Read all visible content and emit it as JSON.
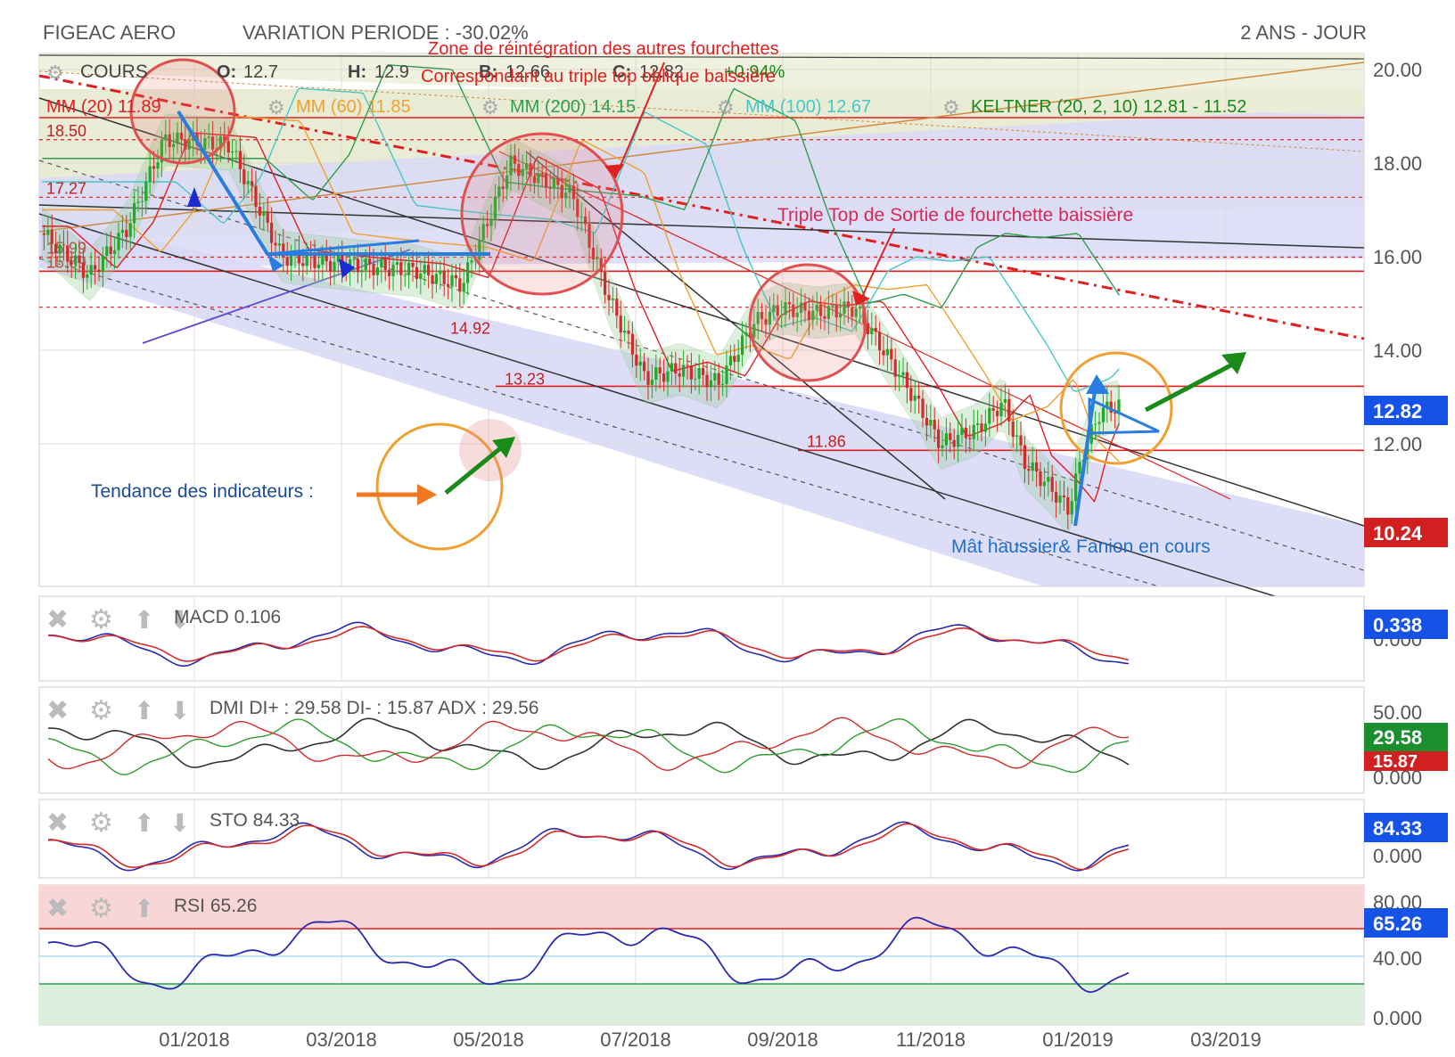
{
  "header": {
    "instrument": "FIGEAC AERO",
    "variation": "VARIATION PERIODE : -30.02%",
    "period": "2 ANS - JOUR"
  },
  "legend": {
    "cours": "COURS",
    "ohlc": [
      {
        "key": "O:",
        "value": "12.7"
      },
      {
        "key": "H:",
        "value": "12.9"
      },
      {
        "key": "B:",
        "value": "12.66"
      },
      {
        "key": "C:",
        "value": "12.82"
      }
    ],
    "change": "+0.94%",
    "indicators": [
      {
        "label": "MM (20)",
        "value": "11.89",
        "color": "#e02020"
      },
      {
        "label": "MM (60)",
        "value": "11.85",
        "color": "#f0a030"
      },
      {
        "label": "MM (200)",
        "value": "14.15",
        "color": "#2e9e4e"
      },
      {
        "label": "MM (100)",
        "value": "12.67",
        "color": "#45c7c9"
      },
      {
        "label": "KELTNER (20, 2, 10)",
        "value": "12.81 - 11.52",
        "color": "#1a8a1a"
      }
    ]
  },
  "annotations": {
    "zone_reintegration_1": "Zone de réintégration des autres fourchettes",
    "zone_reintegration_2": "Correspondant au triple top oblique baissière",
    "triple_top": "Triple Top de Sortie de fourchette baissière",
    "mat_haussier": "Mât haussier& Fanion en cours",
    "tendance": "Tendance des indicateurs :"
  },
  "price_levels": [
    {
      "label": "18.50",
      "value": 18.5
    },
    {
      "label": "17.27",
      "value": 17.27
    },
    {
      "label": "15.99",
      "value": 15.99
    },
    {
      "label": "15.69",
      "value": 15.69
    },
    {
      "label": "14.92",
      "value": 14.92
    },
    {
      "label": "13.23",
      "value": 13.23
    },
    {
      "label": "11.86",
      "value": 11.86
    }
  ],
  "price_badges": {
    "last": "12.82",
    "last_value": 12.82,
    "low": "10.24",
    "low_value": 10.24
  },
  "panels": {
    "macd": {
      "label": "MACD",
      "value": "0.106",
      "badge": "0.338",
      "ticks": [
        "0.000"
      ]
    },
    "dmi": {
      "label": "DMI",
      "values": "DI+ : 29.58 DI- : 15.87 ADX : 29.56",
      "badge_plus": "29.58",
      "badge_minus": "15.87",
      "ticks": [
        "50.00",
        "0.000"
      ]
    },
    "sto": {
      "label": "STO",
      "value": "84.33",
      "badge": "84.33",
      "ticks": [
        "0.000"
      ]
    },
    "rsi": {
      "label": "RSI",
      "value": "65.26",
      "badge": "65.26",
      "ticks": [
        "80.00",
        "40.00",
        "0.000"
      ]
    }
  },
  "colors": {
    "up": "#1faa2a",
    "down": "#d42a2a",
    "blue_badge": "#1553e8",
    "red_badge": "#d21f1f",
    "green_badge": "#1b8f2e",
    "channel_fill": "#d9d9f7",
    "upper_fill": "#e6e9cf"
  },
  "chart_data": {
    "type": "candlestick",
    "title": "FIGEAC AERO",
    "x_ticks": [
      "01/2018",
      "03/2018",
      "05/2018",
      "07/2018",
      "09/2018",
      "11/2018",
      "01/2019",
      "03/2019"
    ],
    "y_ticks": [
      "20.00",
      "18.00",
      "16.00",
      "14.00",
      "12.00"
    ],
    "ylim": [
      9.0,
      20.2
    ],
    "price_anchor_dates": [
      "2017-11-01",
      "2017-11-20",
      "2017-12-05",
      "2017-12-20",
      "2018-01-15",
      "2018-02-05",
      "2018-02-20",
      "2018-03-10",
      "2018-04-01",
      "2018-04-20",
      "2018-05-01",
      "2018-05-10",
      "2018-05-25",
      "2018-06-05",
      "2018-06-20",
      "2018-07-05",
      "2018-07-20",
      "2018-08-05",
      "2018-08-20",
      "2018-09-01",
      "2018-09-15",
      "2018-10-01",
      "2018-10-10",
      "2018-10-25",
      "2018-11-05",
      "2018-11-20",
      "2018-12-01",
      "2018-12-10",
      "2018-12-20",
      "2018-12-28",
      "2019-01-03",
      "2019-01-10",
      "2019-01-18"
    ],
    "price_anchor_close": [
      16.5,
      15.6,
      16.6,
      18.5,
      18.4,
      16.0,
      15.9,
      15.8,
      15.7,
      15.4,
      16.8,
      18.0,
      17.6,
      17.3,
      15.1,
      13.4,
      13.6,
      13.3,
      14.6,
      14.9,
      14.8,
      14.9,
      14.2,
      13.0,
      12.0,
      12.3,
      12.9,
      11.6,
      11.1,
      10.6,
      11.8,
      12.7,
      12.82
    ],
    "series": [
      {
        "name": "MM (20)",
        "last": 11.89
      },
      {
        "name": "MM (60)",
        "last": 11.85
      },
      {
        "name": "MM (200)",
        "last": 14.15
      },
      {
        "name": "MM (100)",
        "last": 12.67
      },
      {
        "name": "KELTNER (20, 2, 10)",
        "upper": 12.81,
        "lower": 11.52
      }
    ],
    "indicators": {
      "MACD": {
        "last": 0.106,
        "badge": 0.338
      },
      "DMI": {
        "DI+": 29.58,
        "DI-": 15.87,
        "ADX": 29.56
      },
      "STO": {
        "last": 84.33
      },
      "RSI": {
        "last": 65.26,
        "overbought": 70,
        "oversold": 30
      }
    }
  }
}
